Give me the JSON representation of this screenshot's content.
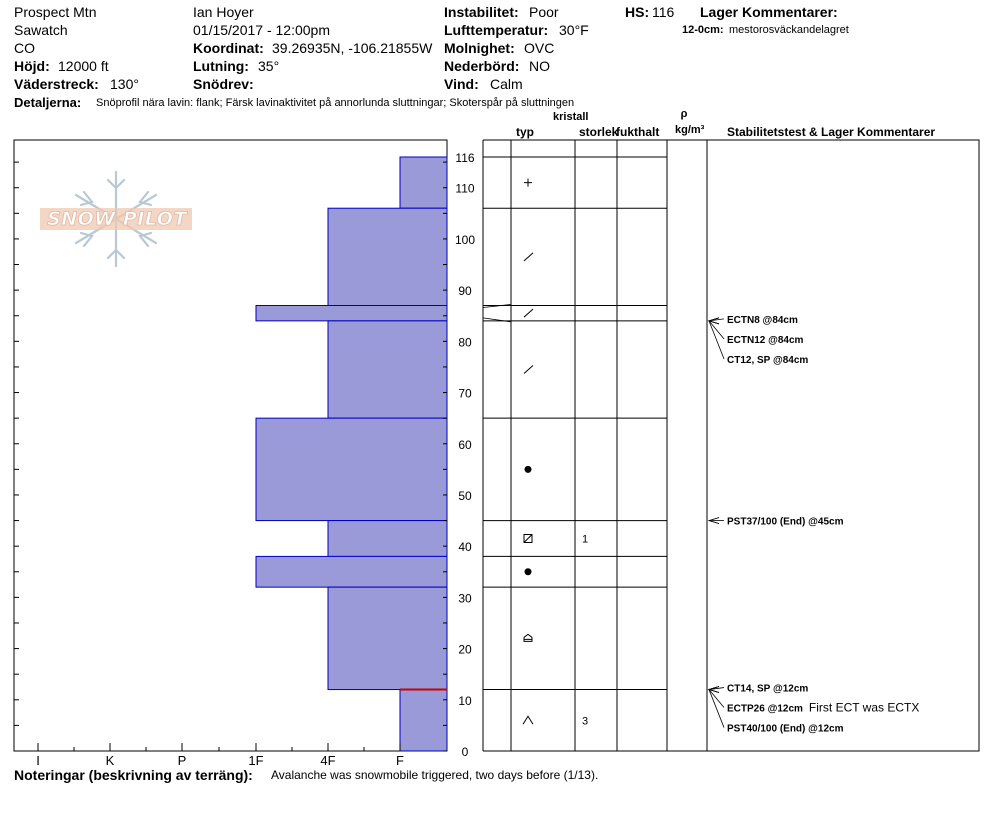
{
  "header": {
    "location": "Prospect Mtn",
    "range": "Sawatch",
    "state": "CO",
    "elevation_label": "Höjd:",
    "elevation": "12000 ft",
    "aspect_label": "Väderstreck:",
    "aspect": "130°",
    "observer": "Ian Hoyer",
    "datetime": "01/15/2017 - 12:00pm",
    "coord_label": "Koordinat:",
    "coord": "39.26935N, -106.21855W",
    "slope_label": "Lutning:",
    "slope": "35°",
    "drift_label": "Snödrev:",
    "drift": "",
    "instability_label": "Instabilitet:",
    "instability": "Poor",
    "airtemp_label": "Lufttemperatur:",
    "airtemp": "30°F",
    "sky_label": "Molnighet:",
    "sky": "OVC",
    "precip_label": "Nederbörd:",
    "precip": "NO",
    "wind_label": "Vind:",
    "wind": "Calm",
    "hs_label": "HS:",
    "hs": "116",
    "layer_comments_label": "Lager Kommentarer:",
    "layer_comment_range": "12-0cm:",
    "layer_comment_text": "mestorosväckandelagret",
    "details_label": "Detaljerna:",
    "details": "Snöprofil nära lavin: flank; Färsk lavinaktivitet på annorlunda sluttningar; Skoterspår på sluttningen"
  },
  "columns": {
    "type": "typ",
    "crystal_top": "kristall",
    "crystal_size": "storlek",
    "wetness": "fukthalt",
    "density_symbol": "ρ",
    "density_unit": "kg/m³",
    "stability": "Stabilitetstest & Lager Kommentarer"
  },
  "footer": {
    "notes_label": "Noteringar (beskrivning av terräng):",
    "notes": "Avalanche was snowmobile triggered, two days before (1/13)."
  },
  "watermark": "SNOW PILOT",
  "colors": {
    "layer_fill": "#9a9ad8",
    "layer_edge": "#0000c0",
    "weak_layer": "#cc0000"
  },
  "chart_data": {
    "type": "bar",
    "title": "",
    "x_categories": [
      "I",
      "K",
      "P",
      "1F",
      "4F",
      "F"
    ],
    "y_ticks": [
      0,
      10,
      20,
      30,
      40,
      50,
      60,
      70,
      80,
      90,
      100,
      110,
      116
    ],
    "ylim": [
      0,
      116
    ],
    "layers": [
      {
        "top": 116,
        "bottom": 106,
        "hardness": "F",
        "grain": "+",
        "size": "",
        "wetness": ""
      },
      {
        "top": 106,
        "bottom": 87,
        "hardness": "4F",
        "grain": "/",
        "size": "",
        "wetness": ""
      },
      {
        "top": 87,
        "bottom": 84,
        "hardness": "1F",
        "grain": "/",
        "size": "",
        "wetness": ""
      },
      {
        "top": 84,
        "bottom": 65,
        "hardness": "4F",
        "grain": "/",
        "size": "",
        "wetness": ""
      },
      {
        "top": 65,
        "bottom": 45,
        "hardness": "1F",
        "grain": "●",
        "size": "",
        "wetness": ""
      },
      {
        "top": 45,
        "bottom": 38,
        "hardness": "4F",
        "grain": "⊠",
        "size": "1",
        "wetness": ""
      },
      {
        "top": 38,
        "bottom": 32,
        "hardness": "1F",
        "grain": "●",
        "size": "",
        "wetness": ""
      },
      {
        "top": 32,
        "bottom": 12,
        "hardness": "4F",
        "grain": "⌂",
        "size": "",
        "wetness": ""
      },
      {
        "top": 12,
        "bottom": 0,
        "hardness": "F",
        "grain": "^",
        "size": "3",
        "wetness": ""
      }
    ],
    "weak_layer_depth": 12,
    "tests": [
      {
        "depth": 84,
        "label": "ECTN8 @84cm",
        "comment": ""
      },
      {
        "depth": 84,
        "label": "ECTN12 @84cm",
        "comment": ""
      },
      {
        "depth": 84,
        "label": "CT12, SP @84cm",
        "comment": ""
      },
      {
        "depth": 45,
        "label": "PST37/100 (End) @45cm",
        "comment": ""
      },
      {
        "depth": 12,
        "label": "CT14, SP @12cm",
        "comment": ""
      },
      {
        "depth": 12,
        "label": "ECTP26 @12cm",
        "comment": "First ECT was ECTX"
      },
      {
        "depth": 12,
        "label": "PST40/100 (End) @12cm",
        "comment": ""
      }
    ]
  }
}
